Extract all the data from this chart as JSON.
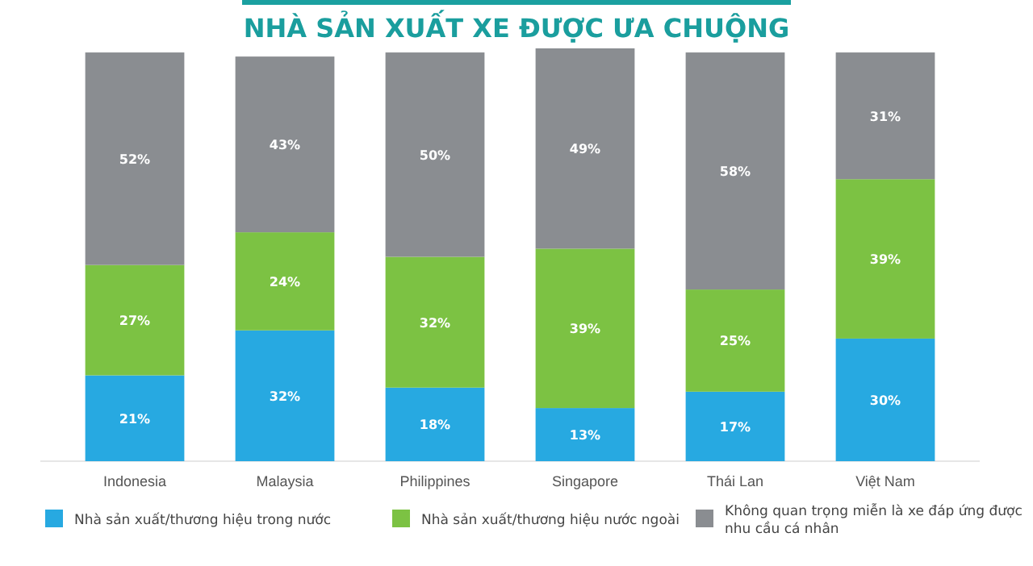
{
  "chart_data": {
    "type": "bar",
    "title": "NHÀ SẢN XUẤT XE ĐƯỢC ƯA CHUỘNG",
    "categories": [
      "Indonesia",
      "Malaysia",
      "Philippines",
      "Singapore",
      "Thái Lan",
      "Việt Nam"
    ],
    "stacked": true,
    "tick_labels": "x",
    "legend": "bottom",
    "series": [
      {
        "name": "Nhà sản xuất/thương hiệu trong nước",
        "color": "#27a9e1",
        "values": [
          21,
          32,
          18,
          13,
          17,
          30
        ],
        "value_labels": [
          "21%",
          "32%",
          "18%",
          "13%",
          "17%",
          "30%"
        ]
      },
      {
        "name": "Nhà sản xuất/thương hiệu nước ngoài",
        "color": "#7cc243",
        "values": [
          27,
          24,
          32,
          39,
          25,
          39
        ],
        "value_labels": [
          "27%",
          "24%",
          "32%",
          "39%",
          "25%",
          "39%"
        ]
      },
      {
        "name": "Không quan trọng miễn là xe đáp ứng được nhu cầu cá nhân",
        "color": "#8a8d91",
        "values": [
          52,
          43,
          50,
          49,
          58,
          31
        ],
        "value_labels": [
          "52%",
          "43%",
          "50%",
          "49%",
          "58%",
          "31%"
        ]
      }
    ]
  }
}
